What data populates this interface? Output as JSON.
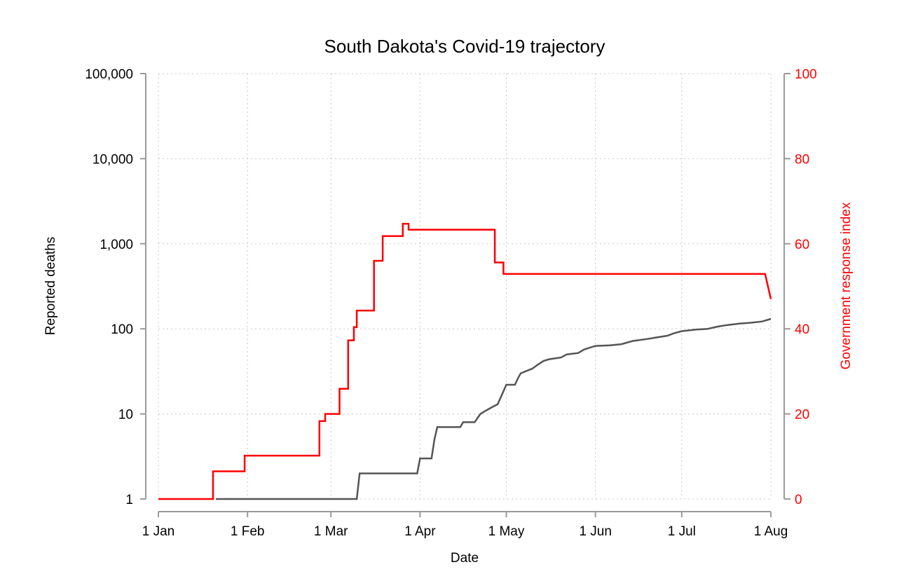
{
  "chart_data": {
    "type": "line",
    "title": "South Dakota's Covid-19 trajectory",
    "xlabel": "Date",
    "ylabel": "Reported deaths",
    "y2label": "Government response index",
    "x_ticks": [
      {
        "date": "2020-01-01",
        "label": "1 Jan"
      },
      {
        "date": "2020-02-01",
        "label": "1 Feb"
      },
      {
        "date": "2020-03-01",
        "label": "1 Mar"
      },
      {
        "date": "2020-04-01",
        "label": "1 Apr"
      },
      {
        "date": "2020-05-01",
        "label": "1 May"
      },
      {
        "date": "2020-06-01",
        "label": "1 Jun"
      },
      {
        "date": "2020-07-01",
        "label": "1 Jul"
      },
      {
        "date": "2020-08-01",
        "label": "1 Aug"
      }
    ],
    "xlim": [
      "2020-01-01",
      "2020-08-01"
    ],
    "y_left": {
      "scale": "log",
      "ylim": [
        1,
        100000
      ],
      "ticks": [
        {
          "value": 1,
          "label": "1"
        },
        {
          "value": 10,
          "label": "10"
        },
        {
          "value": 100,
          "label": "100"
        },
        {
          "value": 1000,
          "label": "1,000"
        },
        {
          "value": 10000,
          "label": "10,000"
        },
        {
          "value": 100000,
          "label": "100,000"
        }
      ]
    },
    "y_right": {
      "scale": "linear",
      "ylim": [
        0,
        100
      ],
      "ticks": [
        {
          "value": 0,
          "label": "0"
        },
        {
          "value": 20,
          "label": "20"
        },
        {
          "value": 40,
          "label": "40"
        },
        {
          "value": 60,
          "label": "60"
        },
        {
          "value": 80,
          "label": "80"
        },
        {
          "value": 100,
          "label": "100"
        }
      ]
    },
    "grid": true,
    "series": [
      {
        "axis": "left",
        "color": "#555555",
        "points": [
          [
            "2020-01-21",
            1
          ],
          [
            "2020-03-10",
            1
          ],
          [
            "2020-03-11",
            2
          ],
          [
            "2020-03-31",
            2
          ],
          [
            "2020-04-01",
            3
          ],
          [
            "2020-04-05",
            3
          ],
          [
            "2020-04-06",
            5
          ],
          [
            "2020-04-07",
            7
          ],
          [
            "2020-04-15",
            7
          ],
          [
            "2020-04-16",
            8
          ],
          [
            "2020-04-20",
            8
          ],
          [
            "2020-04-21",
            9
          ],
          [
            "2020-04-22",
            10
          ],
          [
            "2020-04-24",
            11
          ],
          [
            "2020-04-26",
            12
          ],
          [
            "2020-04-28",
            13
          ],
          [
            "2020-05-01",
            22
          ],
          [
            "2020-05-04",
            22
          ],
          [
            "2020-05-05",
            26
          ],
          [
            "2020-05-06",
            30
          ],
          [
            "2020-05-08",
            32
          ],
          [
            "2020-05-10",
            34
          ],
          [
            "2020-05-12",
            38
          ],
          [
            "2020-05-14",
            42
          ],
          [
            "2020-05-16",
            44
          ],
          [
            "2020-05-20",
            46
          ],
          [
            "2020-05-22",
            50
          ],
          [
            "2020-05-26",
            52
          ],
          [
            "2020-05-28",
            57
          ],
          [
            "2020-05-30",
            60
          ],
          [
            "2020-06-01",
            63
          ],
          [
            "2020-06-06",
            64
          ],
          [
            "2020-06-10",
            66
          ],
          [
            "2020-06-14",
            72
          ],
          [
            "2020-06-19",
            76
          ],
          [
            "2020-06-22",
            79
          ],
          [
            "2020-06-26",
            83
          ],
          [
            "2020-06-28",
            88
          ],
          [
            "2020-07-01",
            94
          ],
          [
            "2020-07-06",
            98
          ],
          [
            "2020-07-10",
            100
          ],
          [
            "2020-07-14",
            107
          ],
          [
            "2020-07-17",
            111
          ],
          [
            "2020-07-21",
            115
          ],
          [
            "2020-07-25",
            118
          ],
          [
            "2020-07-29",
            122
          ],
          [
            "2020-08-01",
            131
          ]
        ]
      },
      {
        "axis": "right",
        "color": "#ff0000",
        "points": [
          [
            "2020-01-01",
            0
          ],
          [
            "2020-01-20",
            0
          ],
          [
            "2020-01-20",
            6.5
          ],
          [
            "2020-01-31",
            6.5
          ],
          [
            "2020-01-31",
            10.2
          ],
          [
            "2020-02-26",
            10.2
          ],
          [
            "2020-02-26",
            18.3
          ],
          [
            "2020-02-28",
            18.3
          ],
          [
            "2020-02-28",
            20
          ],
          [
            "2020-03-04",
            20
          ],
          [
            "2020-03-04",
            25.9
          ],
          [
            "2020-03-07",
            25.9
          ],
          [
            "2020-03-07",
            37.3
          ],
          [
            "2020-03-09",
            37.3
          ],
          [
            "2020-03-09",
            40.4
          ],
          [
            "2020-03-10",
            40.4
          ],
          [
            "2020-03-10",
            44.3
          ],
          [
            "2020-03-16",
            44.3
          ],
          [
            "2020-03-16",
            56
          ],
          [
            "2020-03-19",
            56
          ],
          [
            "2020-03-19",
            61.8
          ],
          [
            "2020-03-26",
            61.8
          ],
          [
            "2020-03-26",
            64.7
          ],
          [
            "2020-03-28",
            64.7
          ],
          [
            "2020-03-28",
            63.3
          ],
          [
            "2020-04-27",
            63.3
          ],
          [
            "2020-04-27",
            55.6
          ],
          [
            "2020-04-30",
            55.6
          ],
          [
            "2020-04-30",
            52.9
          ],
          [
            "2020-07-30",
            52.9
          ],
          [
            "2020-08-01",
            47
          ]
        ]
      }
    ]
  }
}
